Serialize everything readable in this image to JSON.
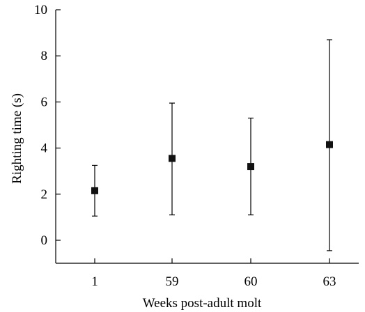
{
  "chart_data": {
    "type": "scatter",
    "title": "",
    "xlabel": "Weeks post-adult molt",
    "ylabel": "Righting time (s)",
    "categories": [
      "1",
      "59",
      "60",
      "63"
    ],
    "ylim": [
      -1,
      10
    ],
    "yticks": [
      0,
      2,
      4,
      6,
      8,
      10
    ],
    "grid": false,
    "legend": "none",
    "series": [
      {
        "marker": "square",
        "color": "#111111",
        "values": [
          2.15,
          3.55,
          3.2,
          4.15
        ],
        "error_low": [
          1.05,
          1.1,
          1.1,
          -0.45
        ],
        "error_high": [
          3.25,
          5.95,
          5.3,
          8.7
        ]
      }
    ]
  }
}
